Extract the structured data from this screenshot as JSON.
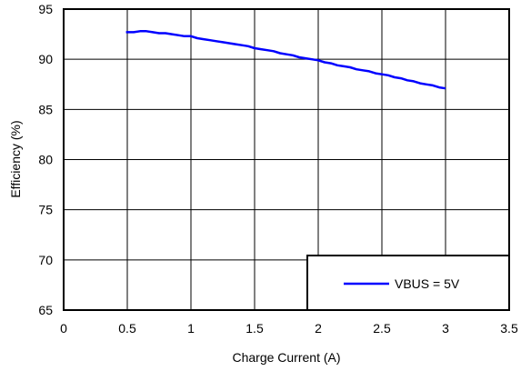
{
  "chart_data": {
    "type": "line",
    "title": "",
    "xlabel": "Charge Current (A)",
    "ylabel": "Efficiency (%)",
    "xlim": [
      0,
      3.5
    ],
    "ylim": [
      65,
      95
    ],
    "xticks": [
      0,
      0.5,
      1,
      1.5,
      2,
      2.5,
      3,
      3.5
    ],
    "xtick_labels": [
      "0",
      "0.5",
      "1",
      "1.5",
      "2",
      "2.5",
      "3",
      "3.5"
    ],
    "yticks": [
      65,
      70,
      75,
      80,
      85,
      90,
      95
    ],
    "ytick_labels": [
      "65",
      "70",
      "75",
      "80",
      "85",
      "90",
      "95"
    ],
    "grid": true,
    "legend_position": "bottom-right",
    "series": [
      {
        "name": "VBUS = 5V",
        "color": "#0000ff",
        "x": [
          0.49,
          0.55,
          0.6,
          0.65,
          0.7,
          0.75,
          0.8,
          0.85,
          0.9,
          0.95,
          1.0,
          1.05,
          1.1,
          1.15,
          1.2,
          1.25,
          1.3,
          1.35,
          1.4,
          1.45,
          1.5,
          1.55,
          1.6,
          1.65,
          1.7,
          1.75,
          1.8,
          1.85,
          1.9,
          1.95,
          2.0,
          2.05,
          2.1,
          2.15,
          2.2,
          2.25,
          2.3,
          2.35,
          2.4,
          2.45,
          2.5,
          2.55,
          2.6,
          2.65,
          2.7,
          2.75,
          2.8,
          2.85,
          2.9,
          2.95,
          3.0
        ],
        "y": [
          92.7,
          92.7,
          92.8,
          92.8,
          92.7,
          92.6,
          92.6,
          92.5,
          92.4,
          92.3,
          92.3,
          92.1,
          92.0,
          91.9,
          91.8,
          91.7,
          91.6,
          91.5,
          91.4,
          91.3,
          91.1,
          91.0,
          90.9,
          90.8,
          90.6,
          90.5,
          90.4,
          90.2,
          90.1,
          90.0,
          89.9,
          89.7,
          89.6,
          89.4,
          89.3,
          89.2,
          89.0,
          88.9,
          88.8,
          88.6,
          88.5,
          88.4,
          88.2,
          88.1,
          87.9,
          87.8,
          87.6,
          87.5,
          87.4,
          87.2,
          87.1
        ]
      }
    ]
  }
}
